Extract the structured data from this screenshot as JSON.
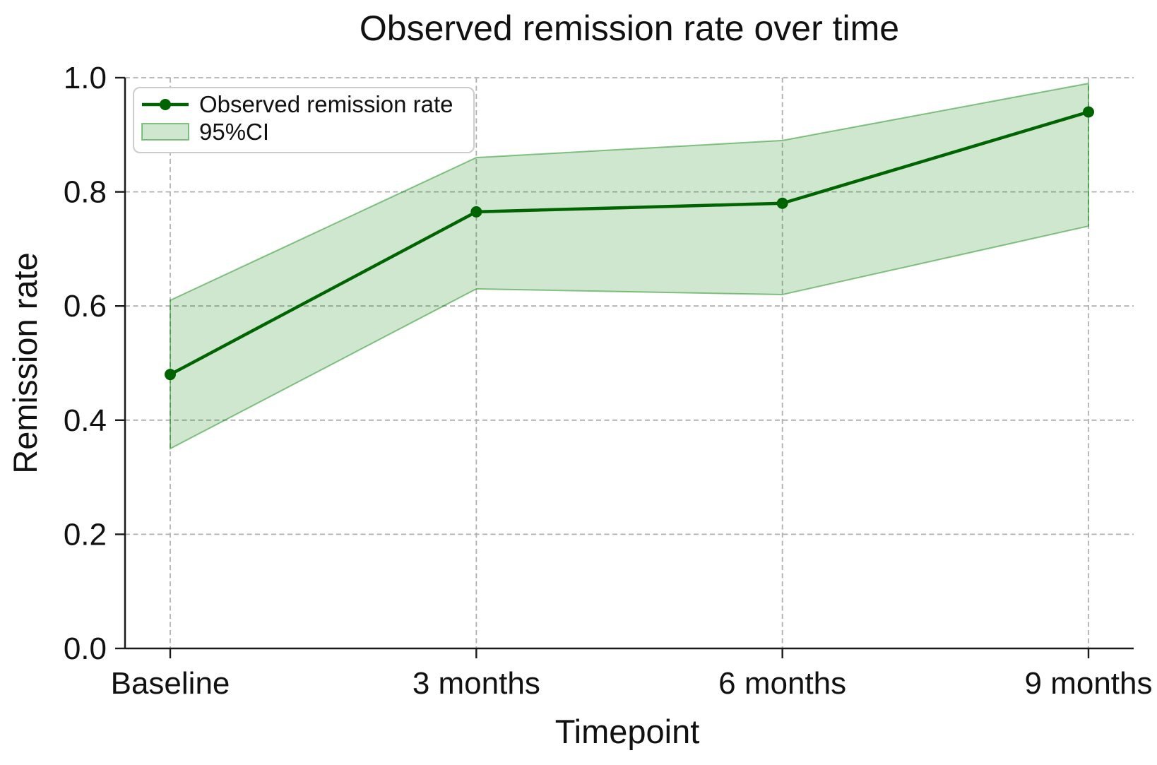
{
  "figure": {
    "background": "#ffffff"
  },
  "chart_data": {
    "type": "line",
    "title": "Observed remission rate over time",
    "xlabel": "Timepoint",
    "ylabel": "Remission rate",
    "categories": [
      "Baseline",
      "3 months",
      "6 months",
      "9 months"
    ],
    "series": [
      {
        "name": "Observed remission rate",
        "values": [
          0.48,
          0.765,
          0.78,
          0.94
        ]
      }
    ],
    "ci_band": {
      "name": "95%CI",
      "lower": [
        0.35,
        0.63,
        0.62,
        0.74
      ],
      "upper": [
        0.61,
        0.86,
        0.89,
        0.99
      ]
    },
    "ylim": [
      0.0,
      1.0
    ],
    "yticks": [
      0.0,
      0.2,
      0.4,
      0.6,
      0.8,
      1.0
    ],
    "grid": true,
    "grid_style": "dashed",
    "legend_position": "upper left",
    "colors": {
      "line": "#006400",
      "marker": "#006400",
      "band": "#008000",
      "band_fill_opacity": 0.19,
      "band_edge_opacity": 0.45,
      "gridline": "#b0b0b0",
      "spine": "#1a1a1a",
      "legend_border": "#cccccc",
      "legend_background": "#ffffff"
    }
  }
}
